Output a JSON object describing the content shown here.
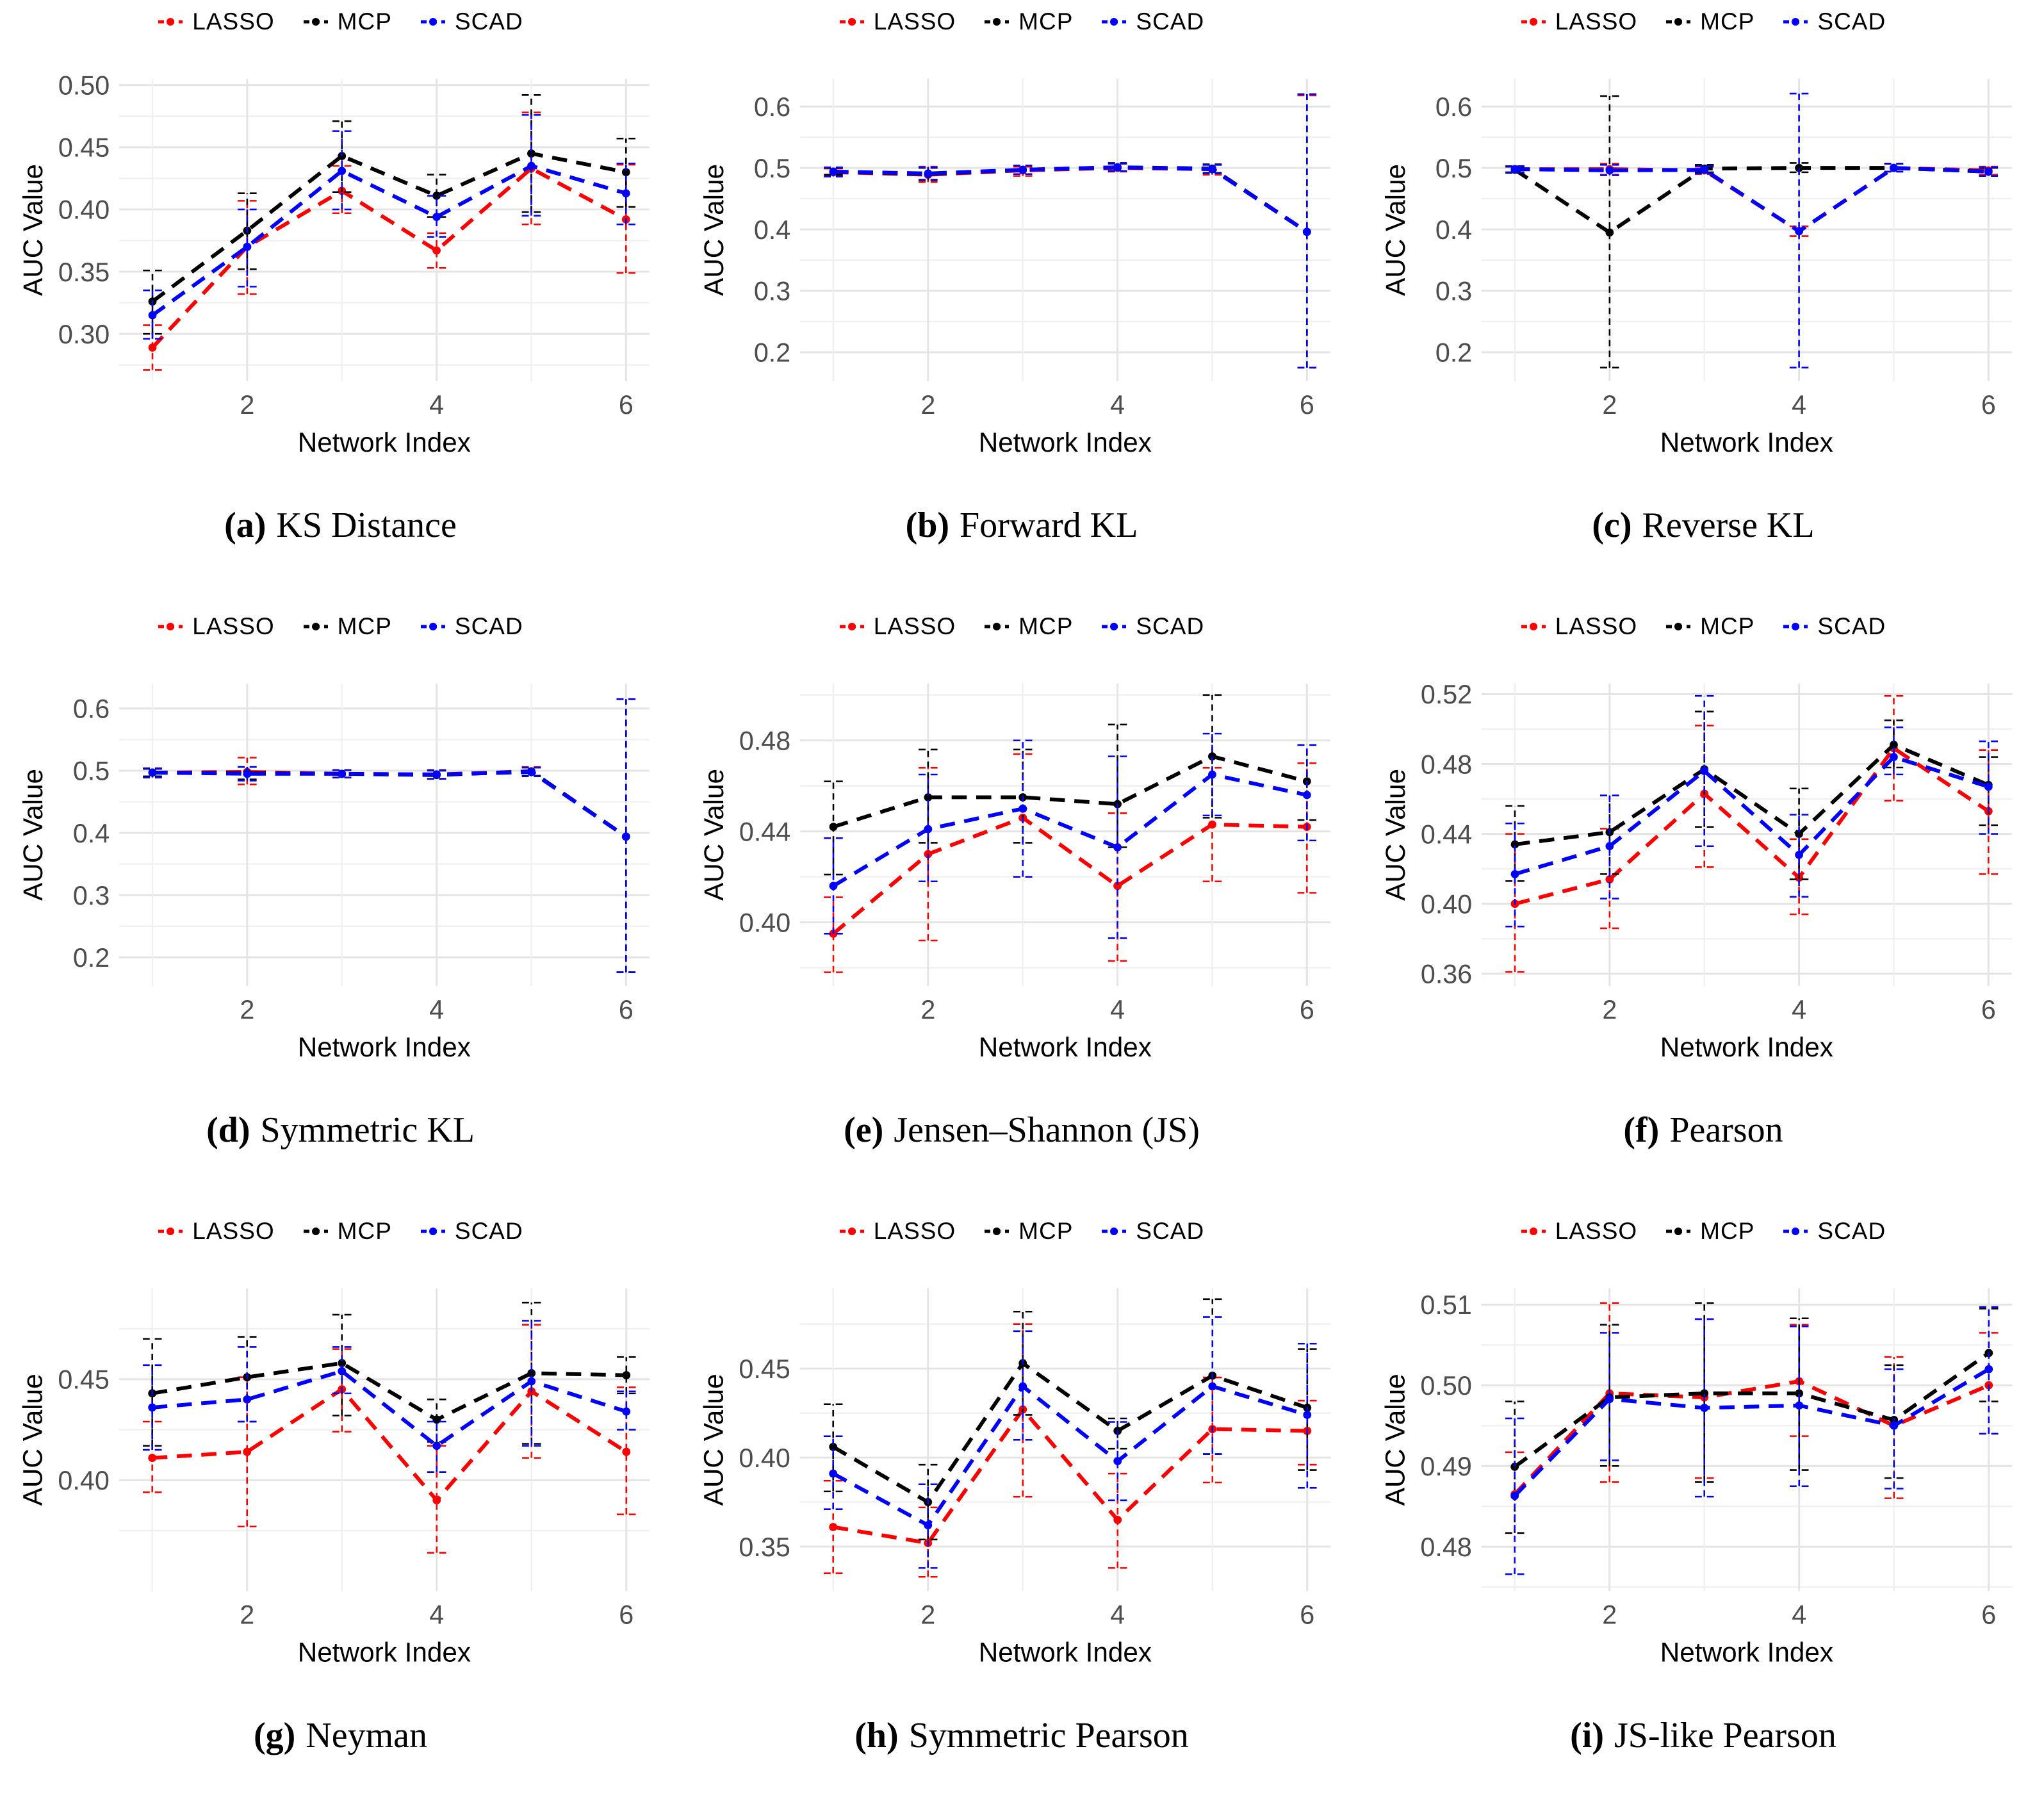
{
  "legend": {
    "items": [
      {
        "label": "LASSO",
        "color": "#FF0000"
      },
      {
        "label": "MCP",
        "color": "#000000"
      },
      {
        "label": "SCAD",
        "color": "#0000FF"
      }
    ]
  },
  "axes": {
    "xlabel": "Network Index",
    "ylabel": "AUC Value",
    "xticks": [
      2,
      4,
      6
    ],
    "xminor": [
      1,
      3,
      5
    ]
  },
  "chart_data": [
    {
      "id": "a",
      "caption_label": "(a)",
      "title": "KS Distance",
      "type": "line",
      "xlabel": "Network Index",
      "ylabel": "AUC Value",
      "x": [
        1,
        2,
        3,
        4,
        5,
        6
      ],
      "yticks": [
        0.3,
        0.35,
        0.4,
        0.45,
        0.5
      ],
      "ydec": 2,
      "ylim": [
        0.262,
        0.505
      ],
      "series": [
        {
          "name": "LASSO",
          "color": "#FF0000",
          "values": [
            0.289,
            0.37,
            0.415,
            0.367,
            0.433,
            0.392
          ],
          "lower": [
            0.271,
            0.332,
            0.397,
            0.353,
            0.388,
            0.349
          ],
          "upper": [
            0.307,
            0.407,
            0.435,
            0.381,
            0.478,
            0.436
          ]
        },
        {
          "name": "MCP",
          "color": "#000000",
          "values": [
            0.326,
            0.383,
            0.443,
            0.411,
            0.445,
            0.43
          ],
          "lower": [
            0.3,
            0.352,
            0.414,
            0.394,
            0.398,
            0.402
          ],
          "upper": [
            0.351,
            0.413,
            0.471,
            0.428,
            0.492,
            0.457
          ]
        },
        {
          "name": "SCAD",
          "color": "#0000FF",
          "values": [
            0.315,
            0.37,
            0.431,
            0.394,
            0.435,
            0.413
          ],
          "lower": [
            0.296,
            0.338,
            0.4,
            0.378,
            0.395,
            0.388
          ],
          "upper": [
            0.335,
            0.4,
            0.463,
            0.411,
            0.476,
            0.437
          ]
        }
      ]
    },
    {
      "id": "b",
      "caption_label": "(b)",
      "title": "Forward KL",
      "type": "line",
      "xlabel": "Network Index",
      "ylabel": "AUC Value",
      "x": [
        1,
        2,
        3,
        4,
        5,
        6
      ],
      "yticks": [
        0.2,
        0.3,
        0.4,
        0.5,
        0.6
      ],
      "ydec": 1,
      "ylim": [
        0.153,
        0.645
      ],
      "series": [
        {
          "name": "LASSO",
          "color": "#FF0000",
          "values": [
            0.493,
            0.489,
            0.496,
            0.5,
            0.498,
            0.396
          ],
          "lower": [
            0.487,
            0.477,
            0.487,
            0.494,
            0.489,
            0.175
          ],
          "upper": [
            0.499,
            0.502,
            0.502,
            0.507,
            0.505,
            0.618
          ]
        },
        {
          "name": "MCP",
          "color": "#000000",
          "values": [
            0.494,
            0.49,
            0.497,
            0.501,
            0.499,
            0.396
          ],
          "lower": [
            0.489,
            0.48,
            0.49,
            0.495,
            0.492,
            0.175
          ],
          "upper": [
            0.5,
            0.5,
            0.504,
            0.508,
            0.506,
            0.62
          ]
        },
        {
          "name": "SCAD",
          "color": "#0000FF",
          "values": [
            0.494,
            0.491,
            0.497,
            0.501,
            0.498,
            0.396
          ],
          "lower": [
            0.486,
            0.481,
            0.49,
            0.495,
            0.491,
            0.175
          ],
          "upper": [
            0.501,
            0.501,
            0.504,
            0.507,
            0.505,
            0.62
          ]
        }
      ]
    },
    {
      "id": "c",
      "caption_label": "(c)",
      "title": "Reverse KL",
      "type": "line",
      "xlabel": "Network Index",
      "ylabel": "AUC Value",
      "x": [
        1,
        2,
        3,
        4,
        5,
        6
      ],
      "yticks": [
        0.2,
        0.3,
        0.4,
        0.5,
        0.6
      ],
      "ydec": 1,
      "ylim": [
        0.153,
        0.645
      ],
      "series": [
        {
          "name": "LASSO",
          "color": "#FF0000",
          "values": [
            0.498,
            0.498,
            0.496,
            0.397,
            0.5,
            0.496
          ],
          "lower": [
            0.493,
            0.489,
            0.49,
            0.389,
            0.494,
            0.489
          ],
          "upper": [
            0.503,
            0.507,
            0.502,
            0.405,
            0.507,
            0.502
          ]
        },
        {
          "name": "MCP",
          "color": "#000000",
          "values": [
            0.497,
            0.395,
            0.499,
            0.5,
            0.5,
            0.494
          ],
          "lower": [
            0.492,
            0.175,
            0.493,
            0.493,
            0.494,
            0.487
          ],
          "upper": [
            0.502,
            0.617,
            0.505,
            0.508,
            0.507,
            0.5
          ]
        },
        {
          "name": "SCAD",
          "color": "#0000FF",
          "values": [
            0.498,
            0.496,
            0.497,
            0.397,
            0.5,
            0.494
          ],
          "lower": [
            0.493,
            0.488,
            0.491,
            0.175,
            0.494,
            0.487
          ],
          "upper": [
            0.503,
            0.505,
            0.503,
            0.621,
            0.507,
            0.501
          ]
        }
      ]
    },
    {
      "id": "d",
      "caption_label": "(d)",
      "title": "Symmetric KL",
      "type": "line",
      "xlabel": "Network Index",
      "ylabel": "AUC Value",
      "x": [
        1,
        2,
        3,
        4,
        5,
        6
      ],
      "yticks": [
        0.2,
        0.3,
        0.4,
        0.5,
        0.6
      ],
      "ydec": 1,
      "ylim": [
        0.154,
        0.64
      ],
      "series": [
        {
          "name": "LASSO",
          "color": "#FF0000",
          "values": [
            0.497,
            0.498,
            0.495,
            0.494,
            0.499,
            0.394
          ],
          "lower": [
            0.49,
            0.478,
            0.489,
            0.487,
            0.492,
            0.176
          ],
          "upper": [
            0.504,
            0.521,
            0.501,
            0.501,
            0.506,
            0.615
          ]
        },
        {
          "name": "MCP",
          "color": "#000000",
          "values": [
            0.497,
            0.496,
            0.495,
            0.493,
            0.499,
            0.394
          ],
          "lower": [
            0.491,
            0.486,
            0.489,
            0.487,
            0.492,
            0.176
          ],
          "upper": [
            0.503,
            0.506,
            0.501,
            0.5,
            0.505,
            0.615
          ]
        },
        {
          "name": "SCAD",
          "color": "#0000FF",
          "values": [
            0.497,
            0.495,
            0.495,
            0.494,
            0.498,
            0.394
          ],
          "lower": [
            0.489,
            0.484,
            0.489,
            0.487,
            0.491,
            0.176
          ],
          "upper": [
            0.504,
            0.506,
            0.501,
            0.501,
            0.505,
            0.615
          ]
        }
      ]
    },
    {
      "id": "e",
      "caption_label": "(e)",
      "title": "Jensen–Shannon (JS)",
      "type": "line",
      "xlabel": "Network Index",
      "ylabel": "AUC Value",
      "x": [
        1,
        2,
        3,
        4,
        5,
        6
      ],
      "yticks": [
        0.4,
        0.44,
        0.48
      ],
      "ydec": 2,
      "ylim": [
        0.372,
        0.505
      ],
      "series": [
        {
          "name": "LASSO",
          "color": "#FF0000",
          "values": [
            0.395,
            0.43,
            0.446,
            0.416,
            0.443,
            0.442
          ],
          "lower": [
            0.378,
            0.392,
            0.42,
            0.383,
            0.418,
            0.413
          ],
          "upper": [
            0.411,
            0.468,
            0.474,
            0.448,
            0.468,
            0.47
          ]
        },
        {
          "name": "MCP",
          "color": "#000000",
          "values": [
            0.442,
            0.455,
            0.455,
            0.452,
            0.473,
            0.462
          ],
          "lower": [
            0.421,
            0.435,
            0.435,
            0.433,
            0.446,
            0.445
          ],
          "upper": [
            0.462,
            0.476,
            0.476,
            0.487,
            0.5,
            0.478
          ]
        },
        {
          "name": "SCAD",
          "color": "#0000FF",
          "values": [
            0.416,
            0.441,
            0.45,
            0.433,
            0.465,
            0.456
          ],
          "lower": [
            0.395,
            0.418,
            0.42,
            0.393,
            0.447,
            0.436
          ],
          "upper": [
            0.437,
            0.465,
            0.48,
            0.473,
            0.483,
            0.478
          ]
        }
      ]
    },
    {
      "id": "f",
      "caption_label": "(f)",
      "title": "Pearson",
      "type": "line",
      "xlabel": "Network Index",
      "ylabel": "AUC Value",
      "x": [
        1,
        2,
        3,
        4,
        5,
        6
      ],
      "yticks": [
        0.36,
        0.4,
        0.44,
        0.48,
        0.52
      ],
      "ydec": 2,
      "ylim": [
        0.353,
        0.526
      ],
      "series": [
        {
          "name": "LASSO",
          "color": "#FF0000",
          "values": [
            0.4,
            0.414,
            0.463,
            0.415,
            0.489,
            0.453
          ],
          "lower": [
            0.361,
            0.386,
            0.421,
            0.394,
            0.459,
            0.417
          ],
          "upper": [
            0.44,
            0.443,
            0.502,
            0.437,
            0.519,
            0.488
          ]
        },
        {
          "name": "MCP",
          "color": "#000000",
          "values": [
            0.434,
            0.441,
            0.477,
            0.44,
            0.491,
            0.468
          ],
          "lower": [
            0.413,
            0.417,
            0.444,
            0.414,
            0.478,
            0.445
          ],
          "upper": [
            0.456,
            0.462,
            0.51,
            0.466,
            0.505,
            0.484
          ]
        },
        {
          "name": "SCAD",
          "color": "#0000FF",
          "values": [
            0.417,
            0.433,
            0.476,
            0.428,
            0.484,
            0.467
          ],
          "lower": [
            0.387,
            0.403,
            0.433,
            0.404,
            0.474,
            0.44
          ],
          "upper": [
            0.446,
            0.462,
            0.519,
            0.451,
            0.501,
            0.493
          ]
        }
      ]
    },
    {
      "id": "g",
      "caption_label": "(g)",
      "title": "Neyman",
      "type": "line",
      "xlabel": "Network Index",
      "ylabel": "AUC Value",
      "x": [
        1,
        2,
        3,
        4,
        5,
        6
      ],
      "yticks": [
        0.4,
        0.45
      ],
      "ydec": 2,
      "ylim": [
        0.345,
        0.495
      ],
      "series": [
        {
          "name": "LASSO",
          "color": "#FF0000",
          "values": [
            0.411,
            0.414,
            0.445,
            0.39,
            0.444,
            0.414
          ],
          "lower": [
            0.394,
            0.377,
            0.424,
            0.364,
            0.411,
            0.383
          ],
          "upper": [
            0.429,
            0.451,
            0.465,
            0.417,
            0.477,
            0.446
          ]
        },
        {
          "name": "MCP",
          "color": "#000000",
          "values": [
            0.443,
            0.451,
            0.458,
            0.43,
            0.453,
            0.452
          ],
          "lower": [
            0.417,
            0.429,
            0.432,
            0.419,
            0.418,
            0.443
          ],
          "upper": [
            0.47,
            0.471,
            0.482,
            0.44,
            0.488,
            0.461
          ]
        },
        {
          "name": "SCAD",
          "color": "#0000FF",
          "values": [
            0.436,
            0.44,
            0.454,
            0.417,
            0.449,
            0.434
          ],
          "lower": [
            0.415,
            0.429,
            0.443,
            0.404,
            0.417,
            0.425
          ],
          "upper": [
            0.457,
            0.466,
            0.466,
            0.429,
            0.479,
            0.444
          ]
        }
      ]
    },
    {
      "id": "h",
      "caption_label": "(h)",
      "title": "Symmetric Pearson",
      "type": "line",
      "xlabel": "Network Index",
      "ylabel": "AUC Value",
      "x": [
        1,
        2,
        3,
        4,
        5,
        6
      ],
      "yticks": [
        0.35,
        0.4,
        0.45
      ],
      "ydec": 2,
      "ylim": [
        0.325,
        0.495
      ],
      "series": [
        {
          "name": "LASSO",
          "color": "#FF0000",
          "values": [
            0.361,
            0.352,
            0.427,
            0.365,
            0.416,
            0.415
          ],
          "lower": [
            0.335,
            0.333,
            0.378,
            0.338,
            0.386,
            0.396
          ],
          "upper": [
            0.387,
            0.372,
            0.475,
            0.391,
            0.445,
            0.432
          ]
        },
        {
          "name": "MCP",
          "color": "#000000",
          "values": [
            0.406,
            0.375,
            0.453,
            0.415,
            0.446,
            0.428
          ],
          "lower": [
            0.381,
            0.354,
            0.424,
            0.405,
            0.402,
            0.393
          ],
          "upper": [
            0.43,
            0.396,
            0.482,
            0.422,
            0.489,
            0.461
          ]
        },
        {
          "name": "SCAD",
          "color": "#0000FF",
          "values": [
            0.391,
            0.362,
            0.44,
            0.398,
            0.44,
            0.424
          ],
          "lower": [
            0.371,
            0.338,
            0.41,
            0.376,
            0.402,
            0.383
          ],
          "upper": [
            0.412,
            0.385,
            0.471,
            0.42,
            0.479,
            0.464
          ]
        }
      ]
    },
    {
      "id": "i",
      "caption_label": "(i)",
      "title": "JS-like Pearson",
      "type": "line",
      "xlabel": "Network Index",
      "ylabel": "AUC Value",
      "x": [
        1,
        2,
        3,
        4,
        5,
        6
      ],
      "yticks": [
        0.48,
        0.49,
        0.5,
        0.51
      ],
      "ydec": 2,
      "ylim": [
        0.4745,
        0.512
      ],
      "series": [
        {
          "name": "LASSO",
          "color": "#FF0000",
          "values": [
            0.4865,
            0.499,
            0.4985,
            0.5005,
            0.495,
            0.5
          ],
          "lower": [
            0.4817,
            0.488,
            0.4885,
            0.4937,
            0.486,
            0.494
          ],
          "upper": [
            0.4917,
            0.5102,
            0.5082,
            0.5075,
            0.5035,
            0.5065
          ]
        },
        {
          "name": "MCP",
          "color": "#000000",
          "values": [
            0.4899,
            0.4985,
            0.499,
            0.499,
            0.4957,
            0.504
          ],
          "lower": [
            0.4817,
            0.49,
            0.488,
            0.4895,
            0.4885,
            0.498
          ],
          "upper": [
            0.498,
            0.5075,
            0.5102,
            0.5083,
            0.5025,
            0.5095
          ]
        },
        {
          "name": "SCAD",
          "color": "#0000FF",
          "values": [
            0.4863,
            0.4983,
            0.4972,
            0.4975,
            0.495,
            0.502
          ],
          "lower": [
            0.4766,
            0.4907,
            0.4862,
            0.4875,
            0.4872,
            0.494
          ],
          "upper": [
            0.4959,
            0.5065,
            0.5082,
            0.5073,
            0.502,
            0.5097
          ]
        }
      ]
    }
  ]
}
